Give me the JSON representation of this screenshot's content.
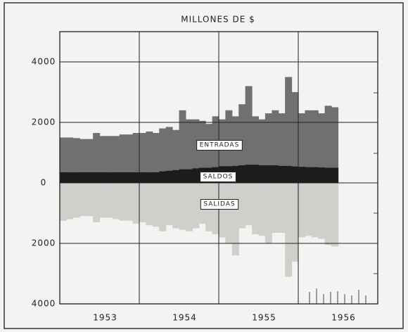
{
  "chart_data": {
    "type": "step-area",
    "title": "MILLONES DE $",
    "x": [
      1953.0,
      1953.083,
      1953.167,
      1953.25,
      1953.333,
      1953.417,
      1953.5,
      1953.583,
      1953.667,
      1953.75,
      1953.833,
      1953.917,
      1954.0,
      1954.083,
      1954.167,
      1954.25,
      1954.333,
      1954.417,
      1954.5,
      1954.583,
      1954.667,
      1954.75,
      1954.833,
      1954.917,
      1955.0,
      1955.083,
      1955.167,
      1955.25,
      1955.333,
      1955.417,
      1955.5,
      1955.583,
      1955.667,
      1955.75,
      1955.833,
      1955.917,
      1956.0,
      1956.083,
      1956.167,
      1956.25,
      1956.333,
      1956.417
    ],
    "series": [
      {
        "name": "ENTRADAS",
        "color": "#707070",
        "values": [
          1500,
          1500,
          1480,
          1450,
          1450,
          1650,
          1550,
          1550,
          1550,
          1600,
          1600,
          1650,
          1650,
          1700,
          1650,
          1800,
          1850,
          1750,
          2400,
          2100,
          2100,
          2050,
          1950,
          2200,
          2100,
          2400,
          2200,
          2600,
          3200,
          2200,
          2100,
          2300,
          2400,
          2300,
          3500,
          3000,
          2300,
          2400,
          2400,
          2300,
          2550,
          2500
        ]
      },
      {
        "name": "SALDOS",
        "color": "#1c1c1c",
        "values": [
          350,
          350,
          350,
          350,
          350,
          350,
          350,
          350,
          350,
          350,
          350,
          350,
          350,
          350,
          350,
          380,
          400,
          420,
          450,
          450,
          480,
          500,
          500,
          520,
          550,
          550,
          560,
          580,
          600,
          600,
          580,
          580,
          580,
          560,
          560,
          540,
          530,
          520,
          520,
          510,
          500,
          500
        ]
      },
      {
        "name": "SALIDAS",
        "color": "#cfcfcc",
        "values": [
          -1250,
          -1200,
          -1150,
          -1100,
          -1100,
          -1300,
          -1150,
          -1150,
          -1200,
          -1250,
          -1250,
          -1350,
          -1300,
          -1400,
          -1450,
          -1600,
          -1400,
          -1500,
          -1550,
          -1600,
          -1500,
          -1350,
          -1600,
          -1700,
          -1800,
          -2000,
          -2400,
          -1500,
          -1400,
          -1700,
          -1750,
          -2000,
          -1650,
          -1650,
          -3100,
          -2600,
          -1800,
          -1750,
          -1800,
          -1850,
          -2050,
          -2100
        ]
      }
    ],
    "xlim": [
      1953,
      1957
    ],
    "xticks": [
      {
        "value": 1953.5,
        "label": "1953"
      },
      {
        "value": 1954.5,
        "label": "1954"
      },
      {
        "value": 1955.5,
        "label": "1955"
      },
      {
        "value": 1956.5,
        "label": "1956"
      }
    ],
    "xgrid": [
      1954,
      1955,
      1956
    ],
    "ylim": [
      -4000,
      5000
    ],
    "yticks": [
      {
        "value": -4000,
        "label": "4000"
      },
      {
        "value": -2000,
        "label": "2000"
      },
      0,
      2000,
      4000
    ],
    "grid": true
  }
}
